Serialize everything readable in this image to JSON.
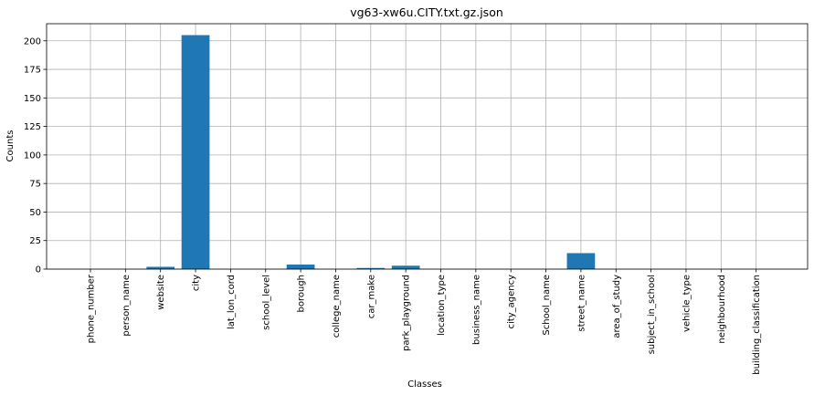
{
  "chart_data": {
    "type": "bar",
    "title": "vg63-xw6u.CITY.txt.gz.json",
    "xlabel": "Classes",
    "ylabel": "Counts",
    "categories": [
      "phone_number",
      "person_name",
      "website",
      "city",
      "lat_lon_cord",
      "school_level",
      "borough",
      "college_name",
      "car_make",
      "park_playground",
      "location_type",
      "business_name",
      "city_agency",
      "School_name",
      "street_name",
      "area_of_study",
      "subject_in_school",
      "vehicle_type",
      "neighbourhood",
      "building_classification"
    ],
    "values": [
      0,
      0,
      2,
      205,
      0,
      0,
      4,
      0,
      1,
      3,
      0,
      0,
      0,
      0,
      14,
      0,
      0,
      0,
      0,
      0
    ],
    "ylim": [
      0,
      215
    ],
    "yticks": [
      0,
      25,
      50,
      75,
      100,
      125,
      150,
      175,
      200
    ],
    "grid": true,
    "bar_color": "#1f77b4"
  }
}
